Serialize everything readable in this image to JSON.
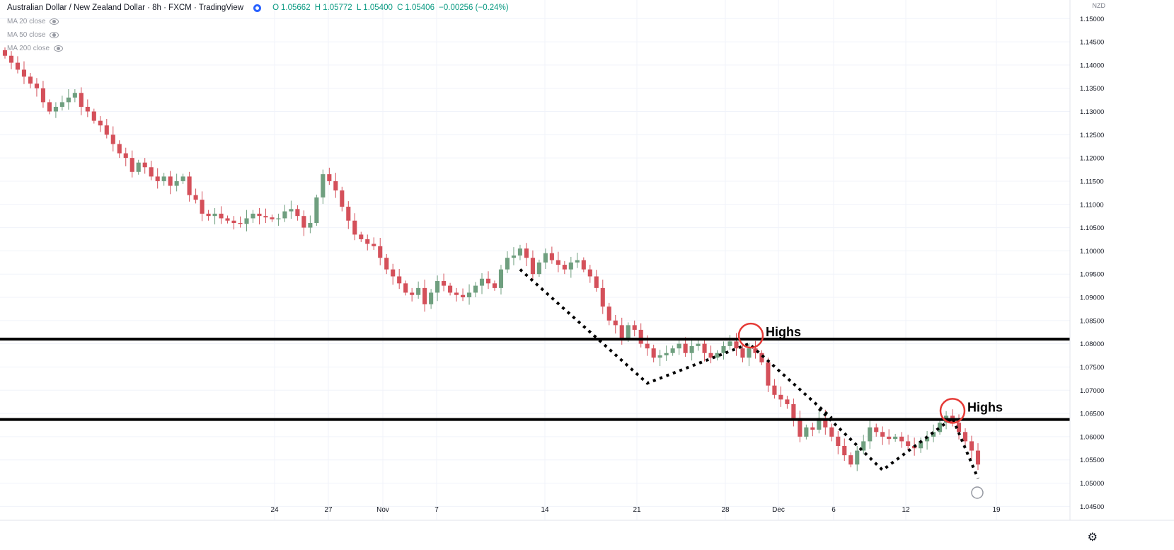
{
  "header": {
    "symbol": "Australian Dollar / New Zealand Dollar · 8h · FXCM · TradingView",
    "ohlc_labels": [
      "O",
      "H",
      "L",
      "C"
    ],
    "ohlc_values": [
      "1.05662",
      "1.05772",
      "1.05400",
      "1.05406"
    ],
    "change": "−0.00256 (−0.24%)",
    "up_color": "#26a69a"
  },
  "indicators": [
    {
      "label": "MA 20 close"
    },
    {
      "label": "MA 50 close"
    },
    {
      "label": "MA 200 close"
    }
  ],
  "currency_label": "NZD",
  "annotations": {
    "high_label_1": "Highs",
    "high_label_2": "Highs"
  },
  "colors": {
    "up": "#6f9f7f",
    "down": "#d4505a",
    "grid": "#f0f3fa",
    "axis_text": "#131722",
    "marker": "#e53935"
  },
  "chart_data": {
    "type": "candlestick",
    "title": "Australian Dollar / New Zealand Dollar · 8h · FXCM",
    "ylim": [
      1.042,
      1.154
    ],
    "y_ticks": [
      "1.15000",
      "1.14500",
      "1.14000",
      "1.13500",
      "1.13000",
      "1.12500",
      "1.12000",
      "1.11500",
      "1.11000",
      "1.10500",
      "1.10000",
      "1.09500",
      "1.09000",
      "1.08500",
      "1.08000",
      "1.07500",
      "1.07000",
      "1.06500",
      "1.06000",
      "1.05500",
      "1.05000",
      "1.04500"
    ],
    "x_ticks": [
      "24",
      "27",
      "Nov",
      "7",
      "14",
      "21",
      "28",
      "Dec",
      "6",
      "12",
      "19"
    ],
    "horizontal_levels": [
      1.081,
      1.0637
    ],
    "highs_markers": [
      1.0813,
      1.0651
    ],
    "closes": [
      1.142,
      1.1405,
      1.139,
      1.1375,
      1.136,
      1.135,
      1.132,
      1.13,
      1.131,
      1.132,
      1.133,
      1.134,
      1.131,
      1.13,
      1.128,
      1.127,
      1.125,
      1.123,
      1.121,
      1.12,
      1.117,
      1.119,
      1.118,
      1.116,
      1.115,
      1.116,
      1.114,
      1.115,
      1.116,
      1.112,
      1.111,
      1.108,
      1.1075,
      1.108,
      1.107,
      1.1065,
      1.106,
      1.1058,
      1.107,
      1.108,
      1.1075,
      1.1072,
      1.1068,
      1.107,
      1.1085,
      1.109,
      1.1075,
      1.105,
      1.106,
      1.1115,
      1.1165,
      1.115,
      1.113,
      1.1095,
      1.1065,
      1.1035,
      1.1025,
      1.1015,
      1.101,
      1.0985,
      1.096,
      1.0945,
      1.093,
      1.091,
      1.0905,
      1.092,
      1.0885,
      1.091,
      1.0935,
      1.0925,
      1.091,
      1.0905,
      1.09,
      1.091,
      1.0925,
      1.094,
      1.093,
      1.092,
      1.096,
      1.0985,
      1.099,
      1.1005,
      1.0985,
      1.095,
      1.0975,
      1.0995,
      1.098,
      1.097,
      1.096,
      1.0975,
      1.098,
      1.096,
      1.0945,
      1.092,
      1.088,
      1.085,
      1.084,
      1.081,
      1.084,
      1.083,
      1.08,
      1.079,
      1.077,
      1.0775,
      1.078,
      1.079,
      1.08,
      1.078,
      1.0795,
      1.08,
      1.078,
      1.077,
      1.078,
      1.0795,
      1.0805,
      1.079,
      1.077,
      1.079,
      1.078,
      1.076,
      1.071,
      1.069,
      1.068,
      1.067,
      1.064,
      1.06,
      1.062,
      1.0615,
      1.064,
      1.062,
      1.06,
      1.058,
      1.056,
      1.054,
      1.057,
      1.059,
      1.062,
      1.061,
      1.06,
      1.0595,
      1.06,
      1.059,
      1.058,
      1.0575,
      1.059,
      1.06,
      1.061,
      1.063,
      1.0645,
      1.063,
      1.061,
      1.059,
      1.057,
      1.054
    ]
  }
}
